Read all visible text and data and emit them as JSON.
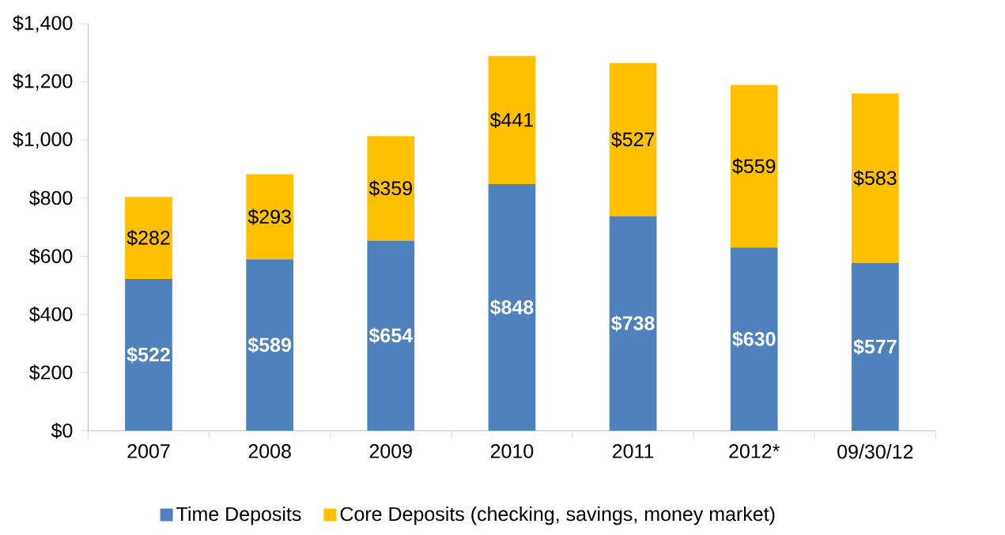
{
  "chart_data": {
    "type": "bar",
    "stacked": true,
    "categories": [
      "2007",
      "2008",
      "2009",
      "2010",
      "2011",
      "2012*",
      "09/30/12"
    ],
    "series": [
      {
        "name": "Time Deposits",
        "color": "#4f81bd",
        "values": [
          522,
          589,
          654,
          848,
          738,
          630,
          577
        ],
        "value_labels": [
          "$522",
          "$589",
          "$654",
          "$848",
          "$738",
          "$630",
          "$577"
        ]
      },
      {
        "name": "Core Deposits (checking, savings, money market)",
        "color": "#ffc000",
        "values": [
          282,
          293,
          359,
          441,
          527,
          559,
          583
        ],
        "value_labels": [
          "$282",
          "$293",
          "$359",
          "$441",
          "$527",
          "$559",
          "$583"
        ]
      }
    ],
    "ylim": [
      0,
      1400
    ],
    "yticks": [
      {
        "value": 0,
        "label": "$0"
      },
      {
        "value": 200,
        "label": "$200"
      },
      {
        "value": 400,
        "label": "$400"
      },
      {
        "value": 600,
        "label": "$600"
      },
      {
        "value": 800,
        "label": "$800"
      },
      {
        "value": 1000,
        "label": "$1,000"
      },
      {
        "value": 1200,
        "label": "$1,200"
      },
      {
        "value": 1400,
        "label": "$1,400"
      }
    ],
    "grid": false,
    "legend": "bottom"
  }
}
